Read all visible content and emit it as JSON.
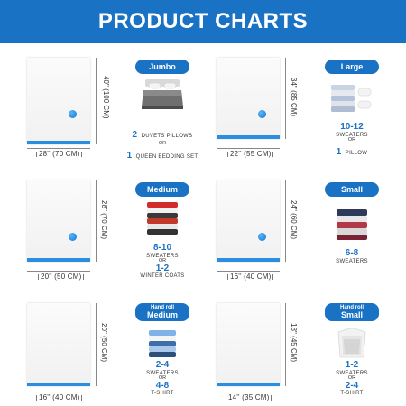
{
  "header": {
    "title": "PRODUCT CHARTS"
  },
  "cells": [
    {
      "badge": "Jumbo",
      "width_label": "28'' (70 CM)",
      "height_label": "40'' (100 CM)",
      "cap": {
        "n1": "2",
        "t1": "DUVETS PILLOWS",
        "or": "OR",
        "n2": "1",
        "t2": "QUEEN BEDDING SET"
      }
    },
    {
      "badge": "Large",
      "width_label": "22'' (55 CM)",
      "height_label": "34'' (85 CM)",
      "cap": {
        "n1": "10-12",
        "t1": "SWEATERS",
        "or": "OR",
        "n2": "1",
        "t2": "PILLOW"
      }
    },
    {
      "badge": "Medium",
      "width_label": "20'' (50 CM)",
      "height_label": "28'' (70 CM)",
      "cap": {
        "n1": "8-10",
        "t1": "SWEATERS",
        "or": "OR",
        "n2": "1-2",
        "t2": "WINTER COATS"
      }
    },
    {
      "badge": "Small",
      "width_label": "16'' (40 CM)",
      "height_label": "24'' (60 CM)",
      "cap": {
        "n1": "6-8",
        "t1": "SWEATERS"
      }
    },
    {
      "badge_small": "Hand roll",
      "badge": "Medium",
      "width_label": "16'' (40 CM)",
      "height_label": "20'' (50 CM)",
      "cap": {
        "n1": "2-4",
        "t1": "SWEATERS",
        "or": "OR",
        "n2": "4-8",
        "t2": "T-SHIRT"
      }
    },
    {
      "badge_small": "Hand roll",
      "badge": "Small",
      "width_label": "14'' (35 CM)",
      "height_label": "18'' (45 CM)",
      "cap": {
        "n1": "1-2",
        "t1": "SWEATERS",
        "or": "OR",
        "n2": "2-4",
        "t2": "T-SHIRT"
      }
    }
  ]
}
